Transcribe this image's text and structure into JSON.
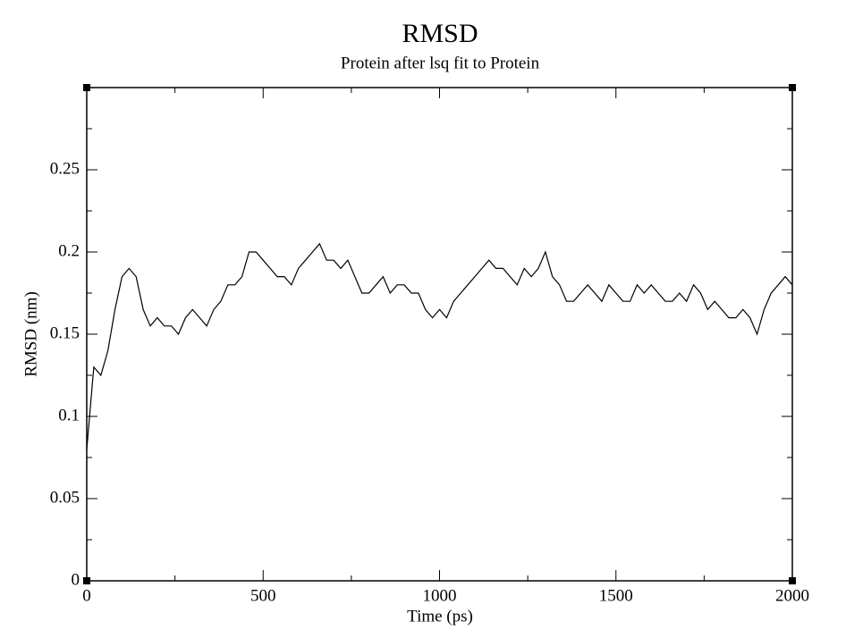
{
  "chart_data": {
    "type": "line",
    "title": "RMSD",
    "subtitle": "Protein after lsq fit to Protein",
    "x_label": "Time (ps)",
    "y_label": "RMSD (nm)",
    "xlim": [
      0,
      2000
    ],
    "ylim": [
      0,
      0.3
    ],
    "xticks": [
      0,
      500,
      1000,
      1500,
      2000
    ],
    "yticks": [
      0,
      0.05,
      0.1,
      0.15,
      0.2,
      0.25
    ],
    "xminorticks": [
      250,
      750,
      1250,
      1750
    ],
    "yminorticks": [
      0.025,
      0.075,
      0.125,
      0.175,
      0.225,
      0.275
    ],
    "x": [
      0,
      20,
      40,
      60,
      80,
      100,
      120,
      140,
      160,
      180,
      200,
      220,
      240,
      260,
      280,
      300,
      320,
      340,
      360,
      380,
      400,
      420,
      440,
      460,
      480,
      500,
      520,
      540,
      560,
      580,
      600,
      620,
      640,
      660,
      680,
      700,
      720,
      740,
      760,
      780,
      800,
      820,
      840,
      860,
      880,
      900,
      920,
      940,
      960,
      980,
      1000,
      1020,
      1040,
      1060,
      1080,
      1100,
      1120,
      1140,
      1160,
      1180,
      1200,
      1220,
      1240,
      1260,
      1280,
      1300,
      1320,
      1340,
      1360,
      1380,
      1400,
      1420,
      1440,
      1460,
      1480,
      1500,
      1520,
      1540,
      1560,
      1580,
      1600,
      1620,
      1640,
      1660,
      1680,
      1700,
      1720,
      1740,
      1760,
      1780,
      1800,
      1820,
      1840,
      1860,
      1880,
      1900,
      1920,
      1940,
      1960,
      1980,
      2000
    ],
    "series": [
      {
        "name": "RMSD",
        "color": "#000000",
        "values": [
          0.08,
          0.13,
          0.125,
          0.14,
          0.165,
          0.185,
          0.19,
          0.185,
          0.165,
          0.155,
          0.16,
          0.155,
          0.155,
          0.15,
          0.16,
          0.165,
          0.16,
          0.155,
          0.165,
          0.17,
          0.18,
          0.18,
          0.185,
          0.2,
          0.2,
          0.195,
          0.19,
          0.185,
          0.185,
          0.18,
          0.19,
          0.195,
          0.2,
          0.205,
          0.195,
          0.195,
          0.19,
          0.195,
          0.185,
          0.175,
          0.175,
          0.18,
          0.185,
          0.175,
          0.18,
          0.18,
          0.175,
          0.175,
          0.165,
          0.16,
          0.165,
          0.16,
          0.17,
          0.175,
          0.18,
          0.185,
          0.19,
          0.195,
          0.19,
          0.19,
          0.185,
          0.18,
          0.19,
          0.185,
          0.19,
          0.2,
          0.185,
          0.18,
          0.17,
          0.17,
          0.175,
          0.18,
          0.175,
          0.17,
          0.18,
          0.175,
          0.17,
          0.17,
          0.18,
          0.175,
          0.18,
          0.175,
          0.17,
          0.17,
          0.175,
          0.17,
          0.18,
          0.175,
          0.165,
          0.17,
          0.165,
          0.16,
          0.16,
          0.165,
          0.16,
          0.15,
          0.165,
          0.175,
          0.18,
          0.185,
          0.18
        ]
      }
    ]
  }
}
